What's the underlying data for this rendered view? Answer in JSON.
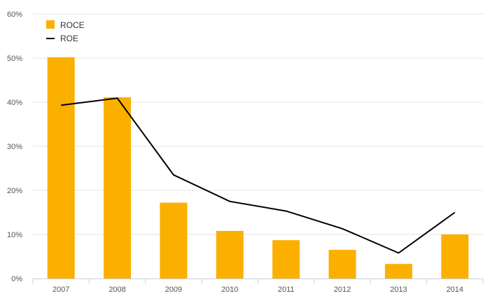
{
  "chart_data": {
    "type": "bar",
    "categories": [
      "2007",
      "2008",
      "2009",
      "2010",
      "2011",
      "2012",
      "2013",
      "2014"
    ],
    "series": [
      {
        "name": "ROCE",
        "type": "bar",
        "color": "#FBB000",
        "values": [
          50.2,
          41.1,
          17.2,
          10.8,
          8.7,
          6.5,
          3.3,
          10.0
        ]
      },
      {
        "name": "ROE",
        "type": "line",
        "color": "#000000",
        "values": [
          39.3,
          40.9,
          23.5,
          17.5,
          15.3,
          11.3,
          5.8,
          15.0
        ]
      }
    ],
    "y_ticks": [
      "0%",
      "10%",
      "20%",
      "30%",
      "40%",
      "50%",
      "60%"
    ],
    "ylim": [
      0,
      60
    ],
    "grid": true,
    "legend_position": "top-left"
  }
}
